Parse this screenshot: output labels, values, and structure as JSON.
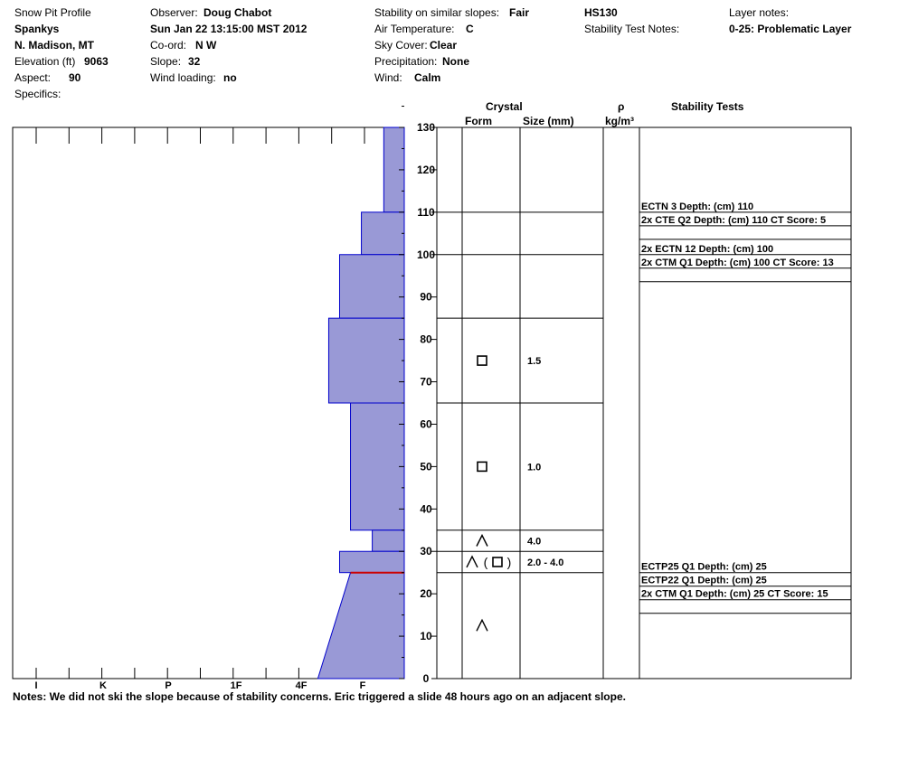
{
  "header": {
    "col1": [
      {
        "label": "Snow Pit Profile",
        "value": ""
      },
      {
        "label": "Spankys",
        "value": ""
      },
      {
        "label": "N. Madison, MT",
        "value": ""
      },
      {
        "label": "Elevation (ft)",
        "value": "9063"
      },
      {
        "label": "Aspect:",
        "value": "90"
      },
      {
        "label": "Specifics:",
        "value": ""
      }
    ],
    "col2": [
      {
        "label": "Observer:",
        "value": "Doug Chabot"
      },
      {
        "label": "",
        "value": "Sun Jan 22 13:15:00 MST 2012"
      },
      {
        "label": "Co-ord:",
        "value": "N  W"
      },
      {
        "label": "Slope:",
        "value": "32"
      },
      {
        "label": "Wind loading:",
        "value": "no"
      }
    ],
    "col3": [
      {
        "label": "Stability on similar slopes:",
        "value": "Fair"
      },
      {
        "label": "Air Temperature:",
        "value": "C"
      },
      {
        "label": "Sky Cover:",
        "value": "Clear"
      },
      {
        "label": "Precipitation:",
        "value": "None"
      },
      {
        "label": "Wind:",
        "value": "Calm"
      }
    ],
    "hs": "HS130",
    "stability_test_notes_label": "Stability Test Notes:",
    "layer_notes_label": "Layer notes:",
    "layer_note": "0-25: Problematic Layer"
  },
  "column_headers": {
    "crystal": "Crystal",
    "form": "Form",
    "size": "Size (mm)",
    "rho": "ρ",
    "density_unit": "kg/m³",
    "stability_tests": "Stability Tests"
  },
  "notes": "Notes:  We did not ski the slope because of stability concerns.  Eric triggered a slide 48 hours ago on an adjacent slope.",
  "colors": {
    "hardness_fill": "#9999d6",
    "hardness_edge": "#0000cc",
    "weak_layer": "#cc0000"
  },
  "chart_data": {
    "type": "snow-profile",
    "y_ticks": [
      "0",
      "10",
      "20",
      "30",
      "40",
      "50",
      "60",
      "70",
      "80",
      "90",
      "100",
      "110",
      "120",
      "130"
    ],
    "y_range": [
      0,
      130
    ],
    "hardness_scale": [
      "I",
      "K",
      "P",
      "1F",
      "4F",
      "F"
    ],
    "hardness_layers": [
      {
        "bottom": 110,
        "top": 130,
        "hardness": 0.64
      },
      {
        "bottom": 100,
        "top": 110,
        "hardness": 1.34
      },
      {
        "bottom": 85,
        "top": 100,
        "hardness": 2.02
      },
      {
        "bottom": 65,
        "top": 85,
        "hardness": 2.36
      },
      {
        "bottom": 35,
        "top": 65,
        "hardness": 1.68
      },
      {
        "bottom": 30,
        "top": 35,
        "hardness": 1.0
      },
      {
        "bottom": 25,
        "top": 30,
        "hardness": 2.02
      },
      {
        "bottom": 0,
        "top": 25,
        "hardness_bottom": 2.7,
        "hardness_top": 1.68
      }
    ],
    "weak_layer_depth": 25,
    "layer_boundaries": [
      110,
      100,
      85,
      65,
      35,
      30,
      25
    ],
    "crystals": [
      {
        "y": 75,
        "forms": [
          "□"
        ],
        "size": "1.5"
      },
      {
        "y": 50,
        "forms": [
          "□"
        ],
        "size": "1.0"
      },
      {
        "y": 32.5,
        "forms": [
          "⋀"
        ],
        "size": "4.0"
      },
      {
        "y": 27.5,
        "forms": [
          "⋀",
          "(",
          "□",
          ")"
        ],
        "size": "2.0 - 4.0"
      },
      {
        "y": 12.5,
        "forms": [
          "⋀"
        ],
        "size": ""
      }
    ],
    "stability_tests": [
      {
        "depth": 110,
        "lines": [
          "ECTN 3   Depth: (cm) 110",
          "2x CTE Q2 Depth: (cm) 110 CT Score: 5"
        ]
      },
      {
        "depth": 100,
        "lines": [
          "2x ECTN 12   Depth: (cm) 100",
          "2x CTM Q1 Depth: (cm) 100 CT Score: 13"
        ]
      },
      {
        "depth": 25,
        "lines": [
          "ECTP25 Q1 Depth: (cm) 25",
          "ECTP22 Q1 Depth: (cm) 25",
          "2x CTM Q1 Depth: (cm) 25 CT Score: 15"
        ]
      }
    ]
  }
}
